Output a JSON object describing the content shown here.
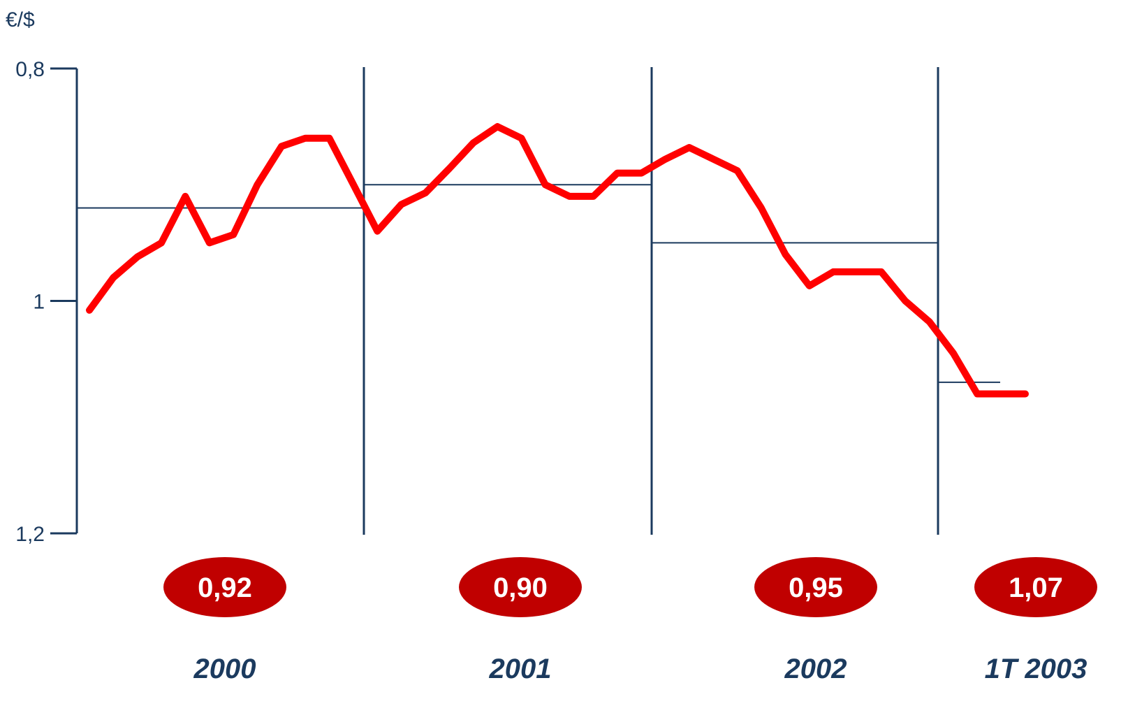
{
  "chart_data": {
    "type": "line",
    "unit_label": "€/$",
    "y_axis": {
      "reversed": true,
      "ylim": [
        0.8,
        1.2
      ],
      "ticks": [
        {
          "value": 0.8,
          "label": "0,8"
        },
        {
          "value": 1.0,
          "label": "1"
        },
        {
          "value": 1.2,
          "label": "1,2"
        }
      ]
    },
    "x_axis": {
      "xlim": [
        1999.96,
        2003.25
      ]
    },
    "periods": [
      {
        "label": "2000",
        "start": 2000.0,
        "end": 2001.0,
        "average": 0.92,
        "average_label": "0,92"
      },
      {
        "label": "2001",
        "start": 2001.0,
        "end": 2002.0,
        "average": 0.9,
        "average_label": "0,90"
      },
      {
        "label": "2002",
        "start": 2002.0,
        "end": 2003.0,
        "average": 0.95,
        "average_label": "0,95"
      },
      {
        "label": "1T 2003",
        "start": 2003.0,
        "end": 2003.22,
        "average": 1.07,
        "average_label": "1,07"
      }
    ],
    "series": [
      {
        "color": "#ff0000",
        "x": [
          2000.0,
          2000.083,
          2000.167,
          2000.25,
          2000.333,
          2000.417,
          2000.5,
          2000.583,
          2000.667,
          2000.75,
          2000.833,
          2000.917,
          2001.0,
          2001.083,
          2001.167,
          2001.25,
          2001.333,
          2001.417,
          2001.5,
          2001.583,
          2001.667,
          2001.75,
          2001.833,
          2001.917,
          2002.0,
          2002.083,
          2002.167,
          2002.25,
          2002.333,
          2002.417,
          2002.5,
          2002.583,
          2002.667,
          2002.75,
          2002.833,
          2002.917,
          2003.0,
          2003.083,
          2003.167,
          2003.25
        ],
        "y": [
          1.008,
          0.98,
          0.962,
          0.95,
          0.91,
          0.95,
          0.943,
          0.9,
          0.867,
          0.86,
          0.86,
          0.9,
          0.94,
          0.917,
          0.907,
          0.886,
          0.864,
          0.85,
          0.86,
          0.9,
          0.91,
          0.91,
          0.89,
          0.89,
          0.878,
          0.868,
          0.878,
          0.888,
          0.92,
          0.96,
          0.987,
          0.975,
          0.975,
          0.975,
          1.0,
          1.018,
          1.045,
          1.08,
          1.08,
          1.08
        ]
      }
    ],
    "colors": {
      "axis": "#1b3a5e",
      "average_line": "#1b3a5e",
      "series_line": "#ff0000",
      "badge_fill": "#c00000",
      "badge_text": "#ffffff",
      "period_label": "#1b3a5e",
      "tick_text": "#1b3a5e"
    }
  }
}
